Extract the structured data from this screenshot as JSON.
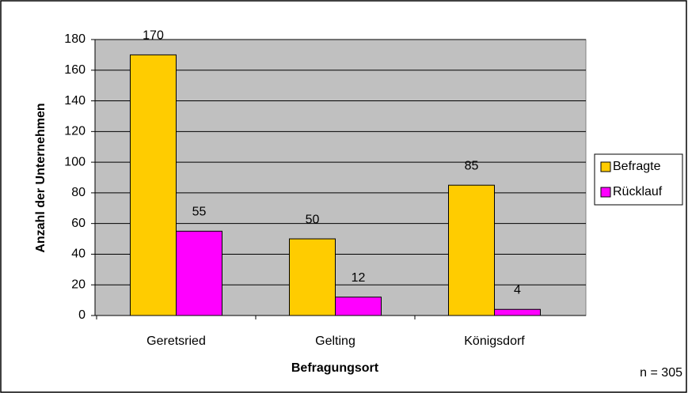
{
  "chart_data": {
    "type": "bar",
    "categories": [
      "Geretsried",
      "Gelting",
      "Königsdorf"
    ],
    "series": [
      {
        "name": "Befragte",
        "color": "#FFCC00",
        "values": [
          170,
          50,
          85
        ]
      },
      {
        "name": "Rücklauf",
        "color": "#FF00FF",
        "values": [
          55,
          12,
          4
        ]
      }
    ],
    "ylim": [
      0,
      180
    ],
    "yticks": [
      0,
      20,
      40,
      60,
      80,
      100,
      120,
      140,
      160,
      180
    ],
    "grid": true,
    "x_label": "Befragungsort",
    "y_label": "Anzahl der Unternehmen",
    "annotation": "n = 305",
    "legend": "right",
    "plot_background": "#C0C0C0"
  }
}
